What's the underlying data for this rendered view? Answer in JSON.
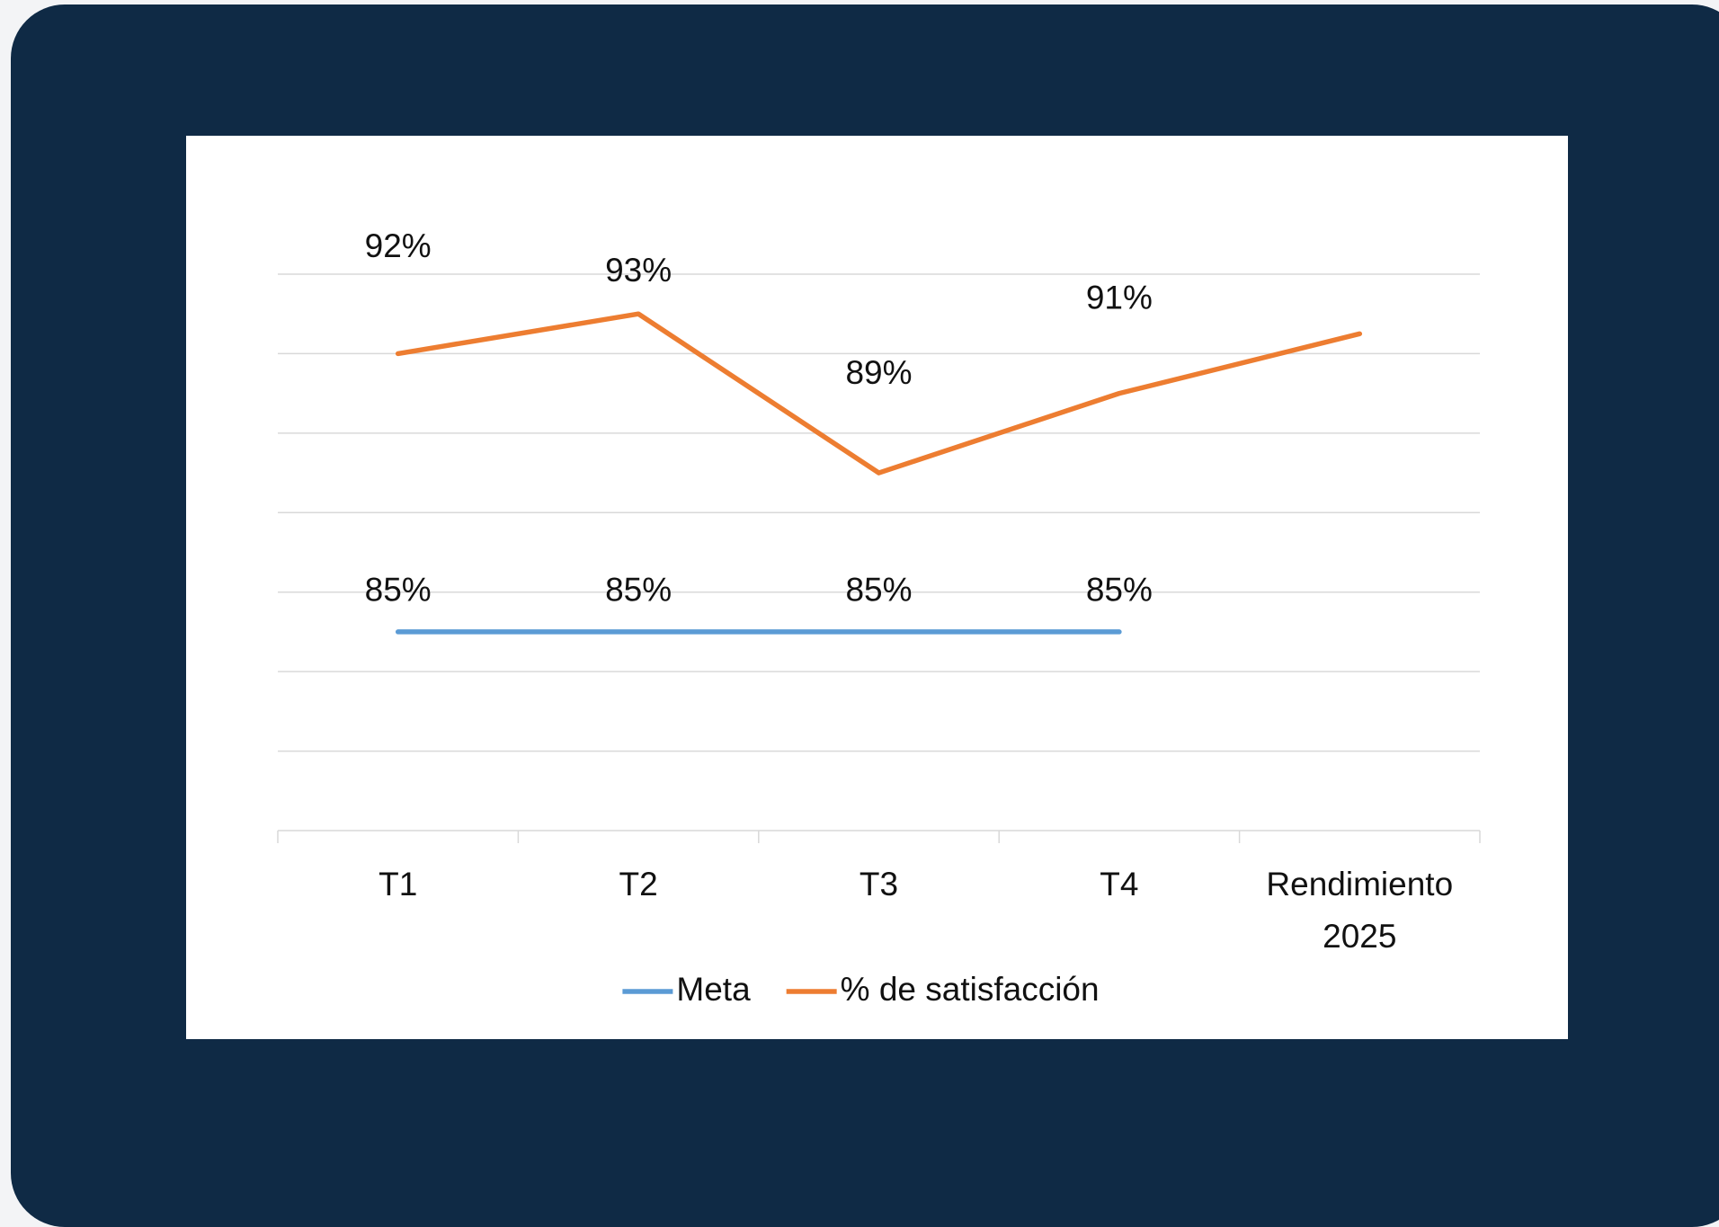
{
  "chart_data": {
    "type": "line",
    "categories": [
      "T1",
      "T2",
      "T3",
      "T4",
      "Rendimiento 2025"
    ],
    "series": [
      {
        "name": "Meta",
        "color": "#5b9bd5",
        "values": [
          85,
          85,
          85,
          85,
          null
        ],
        "value_labels": [
          "85%",
          "85%",
          "85%",
          "85%",
          null
        ]
      },
      {
        "name": "% de satisfacción",
        "color": "#ed7d31",
        "values": [
          92,
          93,
          89,
          91,
          92.5
        ],
        "value_labels": [
          "92%",
          "93%",
          "89%",
          "91%",
          null
        ]
      }
    ],
    "ylim": [
      80,
      94
    ],
    "yticks": [
      80,
      82,
      84,
      86,
      88,
      90,
      92,
      94
    ],
    "grid": true,
    "legend": "bottom"
  }
}
